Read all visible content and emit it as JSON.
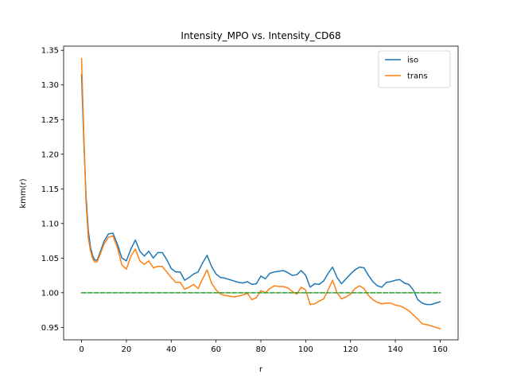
{
  "chart_data": {
    "type": "line",
    "title": "Intensity_MPO vs. Intensity_CD68",
    "xlabel": "r",
    "ylabel": "kmm(r)",
    "xlim": [
      -8,
      168
    ],
    "ylim": [
      0.932,
      1.356
    ],
    "xticks": [
      0,
      20,
      40,
      60,
      80,
      100,
      120,
      140,
      160
    ],
    "yticks": [
      0.95,
      1.0,
      1.05,
      1.1,
      1.15,
      1.2,
      1.25,
      1.3,
      1.35
    ],
    "ytick_labels": [
      "0.95",
      "1.00",
      "1.05",
      "1.10",
      "1.15",
      "1.20",
      "1.25",
      "1.30",
      "1.35"
    ],
    "grid": false,
    "legend_position": "top-right",
    "series": [
      {
        "name": "iso",
        "color": "#1f77b4",
        "style": "solid",
        "x": [
          0,
          1,
          2,
          3,
          4,
          5,
          6,
          7,
          8,
          10,
          12,
          14,
          16,
          18,
          20,
          22,
          24,
          26,
          28,
          30,
          32,
          34,
          36,
          38,
          40,
          42,
          44,
          46,
          48,
          50,
          52,
          54,
          56,
          58,
          60,
          62,
          64,
          66,
          68,
          70,
          72,
          74,
          76,
          78,
          80,
          82,
          84,
          86,
          88,
          90,
          92,
          94,
          96,
          98,
          100,
          102,
          104,
          106,
          108,
          110,
          112,
          114,
          116,
          118,
          120,
          122,
          124,
          126,
          128,
          130,
          132,
          134,
          136,
          138,
          140,
          142,
          144,
          146,
          148,
          150,
          152,
          154,
          156,
          158,
          160
        ],
        "y": [
          1.315,
          1.22,
          1.14,
          1.09,
          1.065,
          1.053,
          1.047,
          1.047,
          1.056,
          1.074,
          1.085,
          1.086,
          1.07,
          1.05,
          1.046,
          1.063,
          1.076,
          1.06,
          1.053,
          1.06,
          1.05,
          1.058,
          1.058,
          1.048,
          1.035,
          1.03,
          1.03,
          1.018,
          1.022,
          1.027,
          1.03,
          1.043,
          1.054,
          1.038,
          1.027,
          1.022,
          1.021,
          1.019,
          1.017,
          1.015,
          1.014,
          1.016,
          1.012,
          1.013,
          1.024,
          1.02,
          1.028,
          1.03,
          1.031,
          1.032,
          1.029,
          1.025,
          1.026,
          1.032,
          1.025,
          1.008,
          1.013,
          1.012,
          1.017,
          1.028,
          1.037,
          1.022,
          1.013,
          1.02,
          1.027,
          1.033,
          1.037,
          1.036,
          1.025,
          1.016,
          1.01,
          1.008,
          1.015,
          1.016,
          1.018,
          1.019,
          1.014,
          1.012,
          1.004,
          0.99,
          0.985,
          0.983,
          0.983,
          0.985,
          0.987
        ]
      },
      {
        "name": "trans",
        "color": "#ff7f0e",
        "style": "solid",
        "x": [
          0,
          1,
          2,
          3,
          4,
          5,
          6,
          7,
          8,
          10,
          12,
          14,
          16,
          18,
          20,
          22,
          24,
          26,
          28,
          30,
          32,
          34,
          36,
          38,
          40,
          42,
          44,
          46,
          48,
          50,
          52,
          54,
          56,
          58,
          60,
          62,
          64,
          66,
          68,
          70,
          72,
          74,
          76,
          78,
          80,
          82,
          84,
          86,
          88,
          90,
          92,
          94,
          96,
          98,
          100,
          102,
          104,
          106,
          108,
          110,
          112,
          114,
          116,
          118,
          120,
          122,
          124,
          126,
          128,
          130,
          132,
          134,
          136,
          138,
          140,
          142,
          144,
          146,
          148,
          150,
          152,
          154,
          156,
          158,
          160
        ],
        "y": [
          1.338,
          1.23,
          1.13,
          1.08,
          1.06,
          1.049,
          1.044,
          1.045,
          1.053,
          1.07,
          1.08,
          1.082,
          1.065,
          1.04,
          1.034,
          1.053,
          1.063,
          1.046,
          1.041,
          1.046,
          1.036,
          1.038,
          1.038,
          1.03,
          1.022,
          1.015,
          1.015,
          1.005,
          1.008,
          1.012,
          1.006,
          1.02,
          1.033,
          1.014,
          1.004,
          0.998,
          0.996,
          0.995,
          0.994,
          0.995,
          0.997,
          0.999,
          0.99,
          0.993,
          1.003,
          1.0,
          1.006,
          1.01,
          1.009,
          1.009,
          1.007,
          1.002,
          0.998,
          1.008,
          1.004,
          0.983,
          0.984,
          0.988,
          0.991,
          1.004,
          1.018,
          1.0,
          0.991,
          0.994,
          0.998,
          1.006,
          1.01,
          1.006,
          0.996,
          0.99,
          0.986,
          0.984,
          0.985,
          0.985,
          0.982,
          0.981,
          0.978,
          0.974,
          0.968,
          0.962,
          0.955,
          0.954,
          0.952,
          0.95,
          0.948
        ]
      },
      {
        "name": "",
        "color": "#2ca02c",
        "style": "dashed",
        "x": [
          0,
          160
        ],
        "y": [
          1.0,
          1.0
        ]
      }
    ]
  }
}
